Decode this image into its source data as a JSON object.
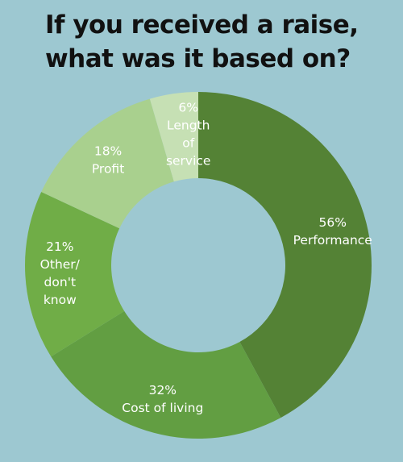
{
  "title": {
    "line1": "If you received a raise,",
    "line2": "what was it based on?"
  },
  "chart_data": {
    "type": "pie",
    "style": "donut",
    "title": "If you received a raise, what was it based on?",
    "unit": "%",
    "slices": [
      {
        "label": "Performance",
        "value": 56,
        "label_text": "56%|Performance",
        "color": "#548235"
      },
      {
        "label": "Cost of living",
        "value": 32,
        "label_text": "32%|Cost of living",
        "color": "#629e42"
      },
      {
        "label": "Other/ don't know",
        "value": 21,
        "label_text": "21%|Other/|don't|know",
        "color": "#70ad47"
      },
      {
        "label": "Profit",
        "value": 18,
        "label_text": "18%|Profit",
        "color": "#a9d08e"
      },
      {
        "label": "Length of service",
        "value": 6,
        "label_text": "6%|Length|of|service",
        "color": "#c6e0b4"
      }
    ],
    "legend": "none"
  }
}
